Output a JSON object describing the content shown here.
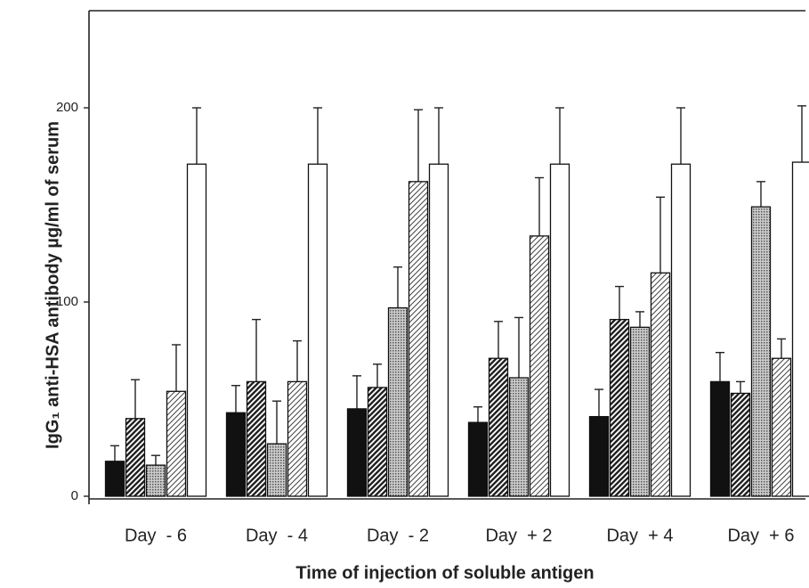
{
  "chart_data": {
    "type": "bar",
    "x_label": "Time of injection of soluble antigen",
    "y_label": "IgG₁ anti-HSA antibody µg/ml of serum",
    "categories": [
      "Day  - 6",
      "Day  - 4",
      "Day  - 2",
      "Day  + 2",
      "Day  + 4",
      "Day  + 6"
    ],
    "ylim": [
      0,
      250
    ],
    "yticks": [
      0,
      100,
      200
    ],
    "series": [
      {
        "color": "#111111",
        "pattern": "solid",
        "values": [
          18,
          43,
          45,
          38,
          41,
          59
        ],
        "errors": [
          8,
          14,
          17,
          8,
          14,
          15
        ]
      },
      {
        "color": "#222222",
        "pattern": "dense-hatch",
        "values": [
          40,
          59,
          56,
          71,
          91,
          53
        ],
        "errors": [
          20,
          32,
          12,
          19,
          17,
          6
        ]
      },
      {
        "color": "#555555",
        "pattern": "crosshatch",
        "values": [
          16,
          27,
          97,
          61,
          87,
          149
        ],
        "errors": [
          5,
          22,
          21,
          31,
          8,
          13
        ]
      },
      {
        "color": "#444444",
        "pattern": "light-hatch",
        "values": [
          54,
          59,
          162,
          134,
          115,
          71
        ],
        "errors": [
          24,
          21,
          37,
          30,
          39,
          10
        ]
      },
      {
        "color": "#ffffff",
        "pattern": "solid",
        "values": [
          171,
          171,
          171,
          171,
          171,
          172
        ],
        "errors": [
          29,
          29,
          29,
          29,
          29,
          29
        ]
      }
    ]
  }
}
